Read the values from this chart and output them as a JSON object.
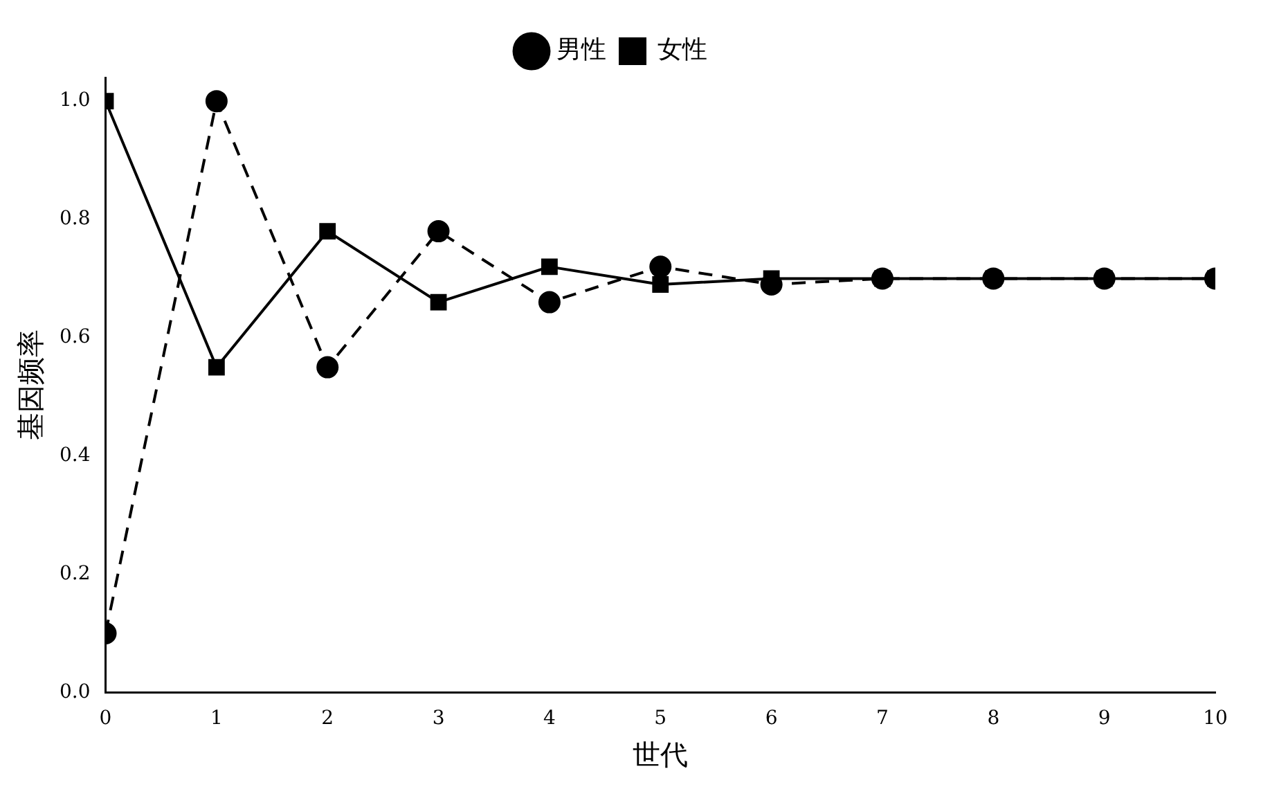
{
  "chart_data": {
    "type": "line",
    "xlabel": "世代",
    "ylabel": "基因频率",
    "x": [
      0,
      1,
      2,
      3,
      4,
      5,
      6,
      7,
      8,
      9,
      10
    ],
    "series": [
      {
        "name": "男性",
        "color": "#000000",
        "marker": "circle",
        "line_style": "dashed",
        "values": [
          0.1,
          1.0,
          0.55,
          0.78,
          0.66,
          0.72,
          0.69,
          0.7,
          0.7,
          0.7,
          0.7
        ]
      },
      {
        "name": "女性",
        "color": "#000000",
        "marker": "square",
        "line_style": "solid",
        "values": [
          1.0,
          0.55,
          0.78,
          0.66,
          0.72,
          0.69,
          0.7,
          0.7,
          0.7,
          0.7,
          0.7
        ]
      }
    ],
    "xlim": [
      0,
      10
    ],
    "xticks": [
      0,
      1,
      2,
      3,
      4,
      5,
      6,
      7,
      8,
      9,
      10
    ],
    "ylim": [
      0,
      1.04
    ],
    "yticks": [
      {
        "value": 0,
        "label": "0.0"
      },
      {
        "value": 0.2,
        "label": "0.2"
      },
      {
        "value": 0.4,
        "label": "0.4"
      },
      {
        "value": 0.6,
        "label": "0.6"
      },
      {
        "value": 0.8,
        "label": "0.8"
      },
      {
        "value": 1,
        "label": "1.0"
      }
    ],
    "grid": false,
    "legend": "top"
  }
}
